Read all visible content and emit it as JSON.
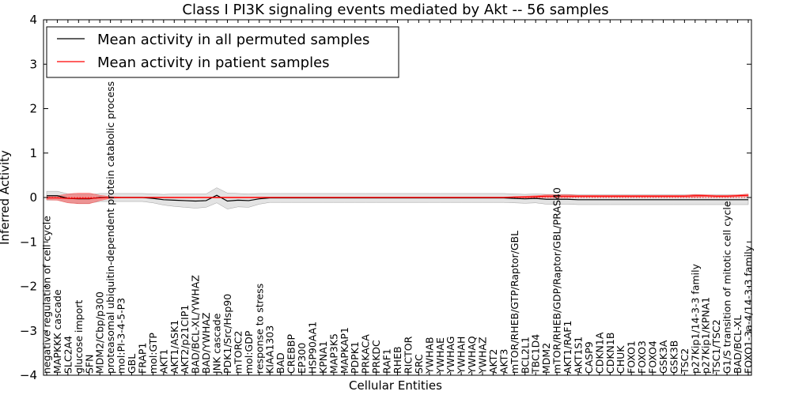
{
  "chart_data": {
    "type": "line",
    "title": "Class I PI3K signaling events mediated by Akt -- 56 samples",
    "xlabel": "Cellular Entities",
    "ylabel": "Inferred Activity",
    "ylim": [
      -4,
      4
    ],
    "yticks": [
      -4,
      -3,
      -2,
      -1,
      0,
      1,
      2,
      3,
      4
    ],
    "ytick_labels": [
      "−4",
      "−3",
      "−2",
      "−1",
      "0",
      "1",
      "2",
      "3",
      "4"
    ],
    "grid": false,
    "legend_position": "top-left",
    "categories": [
      "negative regulation of cell cycle",
      "MAPKKK cascade",
      "SLC2A4",
      "glucose import",
      "SFN",
      "MDM2/Cbp/p300",
      "proteasomal ubiquitin-dependent protein catabolic process",
      "mol:PI-3-4-5-P3",
      "GBL",
      "FRAP1",
      "mol:GTP",
      "AKT1",
      "AKT1/ASK1",
      "AKT2/p21CIP1",
      "BAD/BCL-XL/YWHAZ",
      "BAD/YWHAZ",
      "JNK cascade",
      "PDK1/Src/Hsp90",
      "mTORC2",
      "mol:GDP",
      "response to stress",
      "KIAA1303",
      "BAD",
      "CREBBP",
      "EP300",
      "HSP90AA1",
      "KPNA1",
      "MAP3K5",
      "MAPKAP1",
      "PDPK1",
      "PRKACA",
      "PRKDC",
      "RAF1",
      "RHEB",
      "RICTOR",
      "SRC",
      "YWHAB",
      "YWHAE",
      "YWHAG",
      "YWHAH",
      "YWHAQ",
      "YWHAZ",
      "AKT2",
      "AKT3",
      "mTOR/RHEB/GTP/Raptor/GBL",
      "BCL2L1",
      "TBC1D4",
      "MDM2",
      "mTOR/RHEB/GDP/Raptor/GBL/PRAS40",
      "AKT1/RAF1",
      "AKT1S1",
      "CASP9",
      "CDKN1A",
      "CDKN1B",
      "CHUK",
      "FOXO1",
      "FOXO3",
      "FOXO4",
      "GSK3A",
      "GSK3B",
      "TSC2",
      "p27Kip1/14-3-3 family",
      "p27Kip1/KPNA1",
      "TSC1/TSC2",
      "G1/S transition of mitotic cell cycle",
      "BAD/BCL-XL",
      "FOXO1-3a-4/14-3-3 family"
    ],
    "series": [
      {
        "name": "Mean activity in all permuted samples",
        "color": "#000000",
        "values": [
          0.04,
          0.04,
          -0.02,
          -0.03,
          -0.03,
          0.0,
          0.0,
          0.0,
          0.0,
          0.0,
          -0.02,
          -0.05,
          -0.06,
          -0.07,
          -0.08,
          -0.07,
          0.05,
          -0.08,
          -0.06,
          -0.07,
          -0.03,
          -0.01,
          -0.01,
          -0.01,
          -0.01,
          -0.01,
          -0.01,
          -0.01,
          -0.01,
          -0.01,
          -0.01,
          -0.01,
          -0.01,
          -0.01,
          -0.01,
          -0.01,
          -0.01,
          -0.01,
          -0.01,
          -0.01,
          -0.01,
          -0.01,
          -0.01,
          -0.01,
          -0.02,
          -0.03,
          -0.02,
          -0.04,
          -0.04,
          -0.04,
          -0.05,
          -0.05,
          -0.05,
          -0.05,
          -0.05,
          -0.05,
          -0.05,
          -0.05,
          -0.05,
          -0.05,
          -0.05,
          -0.05,
          -0.05,
          -0.05,
          -0.05,
          -0.05,
          -0.05
        ],
        "band": [
          0.1,
          0.1,
          0.1,
          0.1,
          0.1,
          0.09,
          0.09,
          0.09,
          0.09,
          0.09,
          0.1,
          0.12,
          0.14,
          0.15,
          0.16,
          0.15,
          0.17,
          0.18,
          0.15,
          0.15,
          0.12,
          0.1,
          0.1,
          0.1,
          0.1,
          0.1,
          0.1,
          0.1,
          0.1,
          0.1,
          0.1,
          0.1,
          0.1,
          0.1,
          0.1,
          0.1,
          0.1,
          0.1,
          0.1,
          0.1,
          0.1,
          0.1,
          0.1,
          0.1,
          0.1,
          0.1,
          0.1,
          0.11,
          0.11,
          0.11,
          0.11,
          0.11,
          0.11,
          0.11,
          0.11,
          0.11,
          0.11,
          0.11,
          0.11,
          0.11,
          0.11,
          0.11,
          0.11,
          0.11,
          0.11,
          0.11,
          0.11
        ]
      },
      {
        "name": "Mean activity in patient samples",
        "color": "#ff0000",
        "values": [
          -0.01,
          -0.01,
          -0.02,
          -0.02,
          -0.02,
          -0.01,
          0.0,
          0.0,
          0.0,
          0.0,
          0.0,
          0.0,
          0.0,
          0.0,
          0.0,
          0.0,
          0.0,
          0.0,
          0.0,
          0.0,
          0.0,
          0.0,
          0.0,
          0.0,
          0.0,
          0.0,
          0.0,
          0.0,
          0.0,
          0.0,
          0.0,
          0.0,
          0.0,
          0.0,
          0.0,
          0.0,
          0.0,
          0.0,
          0.0,
          0.0,
          0.0,
          0.0,
          0.0,
          0.0,
          0.01,
          0.01,
          0.02,
          0.03,
          0.03,
          0.03,
          0.03,
          0.03,
          0.03,
          0.03,
          0.03,
          0.03,
          0.03,
          0.03,
          0.03,
          0.03,
          0.03,
          0.04,
          0.04,
          0.03,
          0.03,
          0.04,
          0.05
        ],
        "band": [
          0.04,
          0.05,
          0.1,
          0.12,
          0.12,
          0.06,
          0.02,
          0.01,
          0.01,
          0.01,
          0.01,
          0.01,
          0.01,
          0.01,
          0.01,
          0.01,
          0.01,
          0.01,
          0.01,
          0.01,
          0.01,
          0.01,
          0.01,
          0.01,
          0.01,
          0.01,
          0.01,
          0.01,
          0.01,
          0.01,
          0.01,
          0.01,
          0.01,
          0.01,
          0.01,
          0.01,
          0.01,
          0.01,
          0.01,
          0.01,
          0.01,
          0.01,
          0.01,
          0.01,
          0.01,
          0.02,
          0.02,
          0.03,
          0.03,
          0.03,
          0.02,
          0.02,
          0.02,
          0.02,
          0.02,
          0.02,
          0.02,
          0.02,
          0.02,
          0.02,
          0.02,
          0.03,
          0.02,
          0.02,
          0.02,
          0.02,
          0.03
        ]
      }
    ]
  }
}
